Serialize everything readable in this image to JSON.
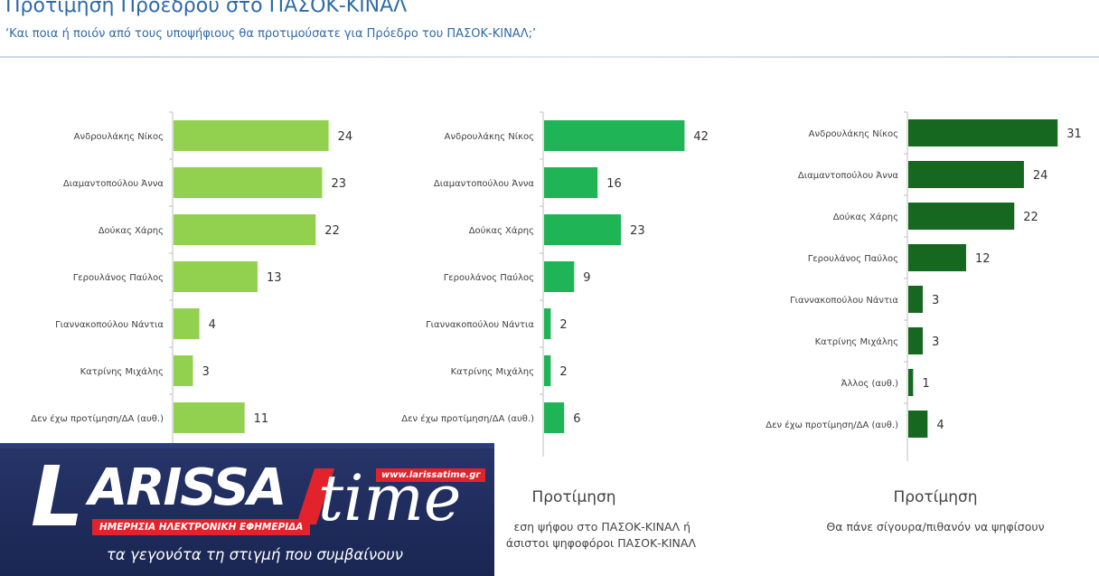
{
  "header": {
    "title": "Προτίμηση Προέδρου στο ΠΑΣΟΚ-ΚΙΝΑΛ",
    "subtitle": "‘Και ποια ή ποιόν από τους υποψήφιους θα προτιμούσατε για Πρόεδρο του ΠΑΣΟΚ-ΚΙΝΑΛ;’"
  },
  "colors": {
    "title": "#2f6aa8",
    "chart1_bar": "#92d050",
    "chart2_bar": "#1fb455",
    "chart3_bar": "#16671f"
  },
  "captions": [
    {
      "title": "",
      "lines": []
    },
    {
      "title": "Προτίμηση",
      "lines": [
        "εση ψήφου στο ΠΑΣΟΚ-ΚΙΝΑΛ ή",
        "άσιστοι ψηφοφόροι ΠΑΣΟΚ-ΚΙΝΑΛ"
      ]
    },
    {
      "title": "Προτίμηση",
      "lines": [
        "Θα πάνε σίγουρα/πιθανόν να ψηφίσουν"
      ]
    }
  ],
  "chart_data": [
    {
      "type": "bar",
      "orientation": "horizontal",
      "color": "#92d050",
      "categories": [
        "Ανδρουλάκης Νίκος",
        "Διαμαντοπούλου Άννα",
        "Δούκας Χάρης",
        "Γερουλάνος Παύλος",
        "Γιαννακοπούλου Νάντια",
        "Κατρίνης Μιχάλης",
        "Δεν έχω προτίμηση/ΔΑ (αυθ.)"
      ],
      "values": [
        24,
        23,
        22,
        13,
        4,
        3,
        11
      ],
      "xlim": [
        0,
        45
      ]
    },
    {
      "type": "bar",
      "orientation": "horizontal",
      "color": "#1fb455",
      "categories": [
        "Ανδρουλάκης Νίκος",
        "Διαμαντοπούλου Άννα",
        "Δούκας Χάρης",
        "Γερουλάνος Παύλος",
        "Γιαννακοπούλου Νάντια",
        "Κατρίνης Μιχάλης",
        "Δεν έχω προτίμηση/ΔΑ (αυθ.)"
      ],
      "values": [
        42,
        16,
        23,
        9,
        2,
        2,
        6
      ],
      "xlim": [
        0,
        45
      ]
    },
    {
      "type": "bar",
      "orientation": "horizontal",
      "color": "#16671f",
      "categories": [
        "Ανδρουλάκης Νίκος",
        "Διαμαντοπούλου Άννα",
        "Δούκας Χάρης",
        "Γερουλάνος Παύλος",
        "Γιαννακοπούλου Νάντια",
        "Κατρίνης Μιχάλης",
        "Άλλος (αυθ.)",
        "Δεν έχω προτίμηση/ΔΑ (αυθ.)"
      ],
      "values": [
        31,
        24,
        22,
        12,
        3,
        3,
        1,
        4
      ],
      "xlim": [
        0,
        45
      ]
    }
  ],
  "logo": {
    "letter": "L",
    "word": "ARISSA",
    "word2": "time",
    "url": "www.larissatime.gr",
    "tagline": "ΗΜΕΡΗΣΙΑ ΗΛΕΚΤΡΟΝΙΚΗ ΕΦΗΜΕΡΙΔΑ",
    "slogan": "τα γεγονότα τη στιγμή που συμβαίνουν"
  }
}
